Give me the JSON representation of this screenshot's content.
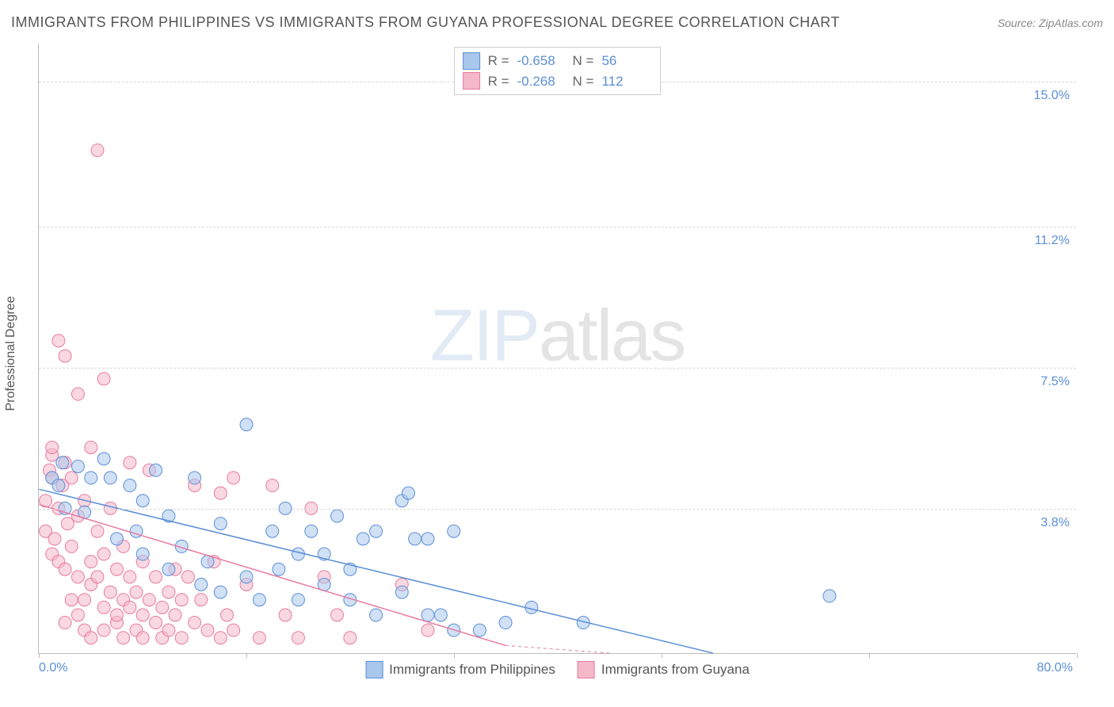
{
  "title": "IMMIGRANTS FROM PHILIPPINES VS IMMIGRANTS FROM GUYANA PROFESSIONAL DEGREE CORRELATION CHART",
  "source": "Source: ZipAtlas.com",
  "watermark": {
    "part1": "ZIP",
    "part2": "atlas"
  },
  "y_axis_title": "Professional Degree",
  "chart": {
    "type": "scatter",
    "xlim": [
      0,
      80
    ],
    "ylim": [
      0,
      16
    ],
    "x_ticks": [
      0,
      16,
      32,
      48,
      64,
      80
    ],
    "x_tick_labels": {
      "0": "0.0%",
      "80": "80.0%"
    },
    "y_gridlines": [
      3.8,
      7.5,
      11.2,
      15.0
    ],
    "y_tick_labels": [
      "3.8%",
      "7.5%",
      "11.2%",
      "15.0%"
    ],
    "grid_color": "#d8d8d8",
    "axis_color": "#bbbbbb",
    "background_color": "#ffffff",
    "marker_radius": 8,
    "marker_opacity": 0.55,
    "line_width": 1.5
  },
  "series": [
    {
      "name": "Immigrants from Philippines",
      "color_fill": "#a9c7ec",
      "color_stroke": "#5b8fd6",
      "R": "-0.658",
      "N": "56",
      "trend": {
        "x1": 0,
        "y1": 4.3,
        "x2": 52,
        "y2": 0.0
      },
      "points": [
        [
          1,
          4.6
        ],
        [
          1.5,
          4.4
        ],
        [
          1.8,
          5.0
        ],
        [
          2,
          3.8
        ],
        [
          3,
          4.9
        ],
        [
          3.5,
          3.7
        ],
        [
          4,
          4.6
        ],
        [
          5,
          5.1
        ],
        [
          5.5,
          4.6
        ],
        [
          6,
          3.0
        ],
        [
          7,
          4.4
        ],
        [
          7.5,
          3.2
        ],
        [
          8,
          4.0
        ],
        [
          8,
          2.6
        ],
        [
          9,
          4.8
        ],
        [
          10,
          2.2
        ],
        [
          10,
          3.6
        ],
        [
          11,
          2.8
        ],
        [
          12,
          4.6
        ],
        [
          12.5,
          1.8
        ],
        [
          13,
          2.4
        ],
        [
          14,
          3.4
        ],
        [
          14,
          1.6
        ],
        [
          16,
          6.0
        ],
        [
          16,
          2.0
        ],
        [
          17,
          1.4
        ],
        [
          18,
          3.2
        ],
        [
          18.5,
          2.2
        ],
        [
          19,
          3.8
        ],
        [
          20,
          2.6
        ],
        [
          20,
          1.4
        ],
        [
          21,
          3.2
        ],
        [
          22,
          1.8
        ],
        [
          22,
          2.6
        ],
        [
          23,
          3.6
        ],
        [
          24,
          1.4
        ],
        [
          24,
          2.2
        ],
        [
          25,
          3.0
        ],
        [
          26,
          1.0
        ],
        [
          26,
          3.2
        ],
        [
          28,
          4.0
        ],
        [
          28,
          1.6
        ],
        [
          29,
          3.0
        ],
        [
          30,
          1.0
        ],
        [
          30,
          3.0
        ],
        [
          31,
          1.0
        ],
        [
          32,
          3.2
        ],
        [
          32,
          0.6
        ],
        [
          34,
          0.6
        ],
        [
          36,
          0.8
        ],
        [
          38,
          1.2
        ],
        [
          42,
          0.8
        ],
        [
          28.5,
          4.2
        ],
        [
          61,
          1.5
        ]
      ]
    },
    {
      "name": "Immigrants from Guyana",
      "color_fill": "#f4b8c8",
      "color_stroke": "#e87ba0",
      "R": "-0.268",
      "N": "112",
      "trend": {
        "x1": 0,
        "y1": 3.9,
        "x2": 36,
        "y2": 0.2
      },
      "trend_dash_ext": {
        "x1": 36,
        "y1": 0.2,
        "x2": 44,
        "y2": 0.0
      },
      "points": [
        [
          0.5,
          4.0
        ],
        [
          0.5,
          3.2
        ],
        [
          0.8,
          4.8
        ],
        [
          1,
          2.6
        ],
        [
          1,
          5.2
        ],
        [
          1,
          5.4
        ],
        [
          1,
          4.6
        ],
        [
          1.2,
          3.0
        ],
        [
          1.5,
          8.2
        ],
        [
          1.5,
          2.4
        ],
        [
          1.5,
          3.8
        ],
        [
          1.8,
          4.4
        ],
        [
          2,
          7.8
        ],
        [
          2,
          2.2
        ],
        [
          2,
          5.0
        ],
        [
          2,
          0.8
        ],
        [
          2.2,
          3.4
        ],
        [
          2.5,
          1.4
        ],
        [
          2.5,
          2.8
        ],
        [
          2.5,
          4.6
        ],
        [
          3,
          6.8
        ],
        [
          3,
          1.0
        ],
        [
          3,
          2.0
        ],
        [
          3,
          3.6
        ],
        [
          3.5,
          1.4
        ],
        [
          3.5,
          4.0
        ],
        [
          3.5,
          0.6
        ],
        [
          4,
          2.4
        ],
        [
          4,
          5.4
        ],
        [
          4,
          1.8
        ],
        [
          4,
          0.4
        ],
        [
          4.5,
          13.2
        ],
        [
          4.5,
          3.2
        ],
        [
          4.5,
          2.0
        ],
        [
          5,
          7.2
        ],
        [
          5,
          1.2
        ],
        [
          5,
          2.6
        ],
        [
          5,
          0.6
        ],
        [
          5.5,
          3.8
        ],
        [
          5.5,
          1.6
        ],
        [
          6,
          2.2
        ],
        [
          6,
          0.8
        ],
        [
          6,
          1.0
        ],
        [
          6.5,
          1.4
        ],
        [
          6.5,
          2.8
        ],
        [
          6.5,
          0.4
        ],
        [
          7,
          5.0
        ],
        [
          7,
          2.0
        ],
        [
          7,
          1.2
        ],
        [
          7.5,
          1.6
        ],
        [
          7.5,
          0.6
        ],
        [
          8,
          2.4
        ],
        [
          8,
          1.0
        ],
        [
          8,
          0.4
        ],
        [
          8.5,
          4.8
        ],
        [
          8.5,
          1.4
        ],
        [
          9,
          2.0
        ],
        [
          9,
          0.8
        ],
        [
          9.5,
          1.2
        ],
        [
          9.5,
          0.4
        ],
        [
          10,
          1.6
        ],
        [
          10,
          0.6
        ],
        [
          10.5,
          2.2
        ],
        [
          10.5,
          1.0
        ],
        [
          11,
          0.4
        ],
        [
          11,
          1.4
        ],
        [
          11.5,
          2.0
        ],
        [
          12,
          4.4
        ],
        [
          12,
          0.8
        ],
        [
          12.5,
          1.4
        ],
        [
          13,
          0.6
        ],
        [
          13.5,
          2.4
        ],
        [
          14,
          0.4
        ],
        [
          14,
          4.2
        ],
        [
          14.5,
          1.0
        ],
        [
          15,
          4.6
        ],
        [
          15,
          0.6
        ],
        [
          16,
          1.8
        ],
        [
          17,
          0.4
        ],
        [
          18,
          4.4
        ],
        [
          19,
          1.0
        ],
        [
          20,
          0.4
        ],
        [
          21,
          3.8
        ],
        [
          22,
          2.0
        ],
        [
          23,
          1.0
        ],
        [
          24,
          0.4
        ],
        [
          28,
          1.8
        ],
        [
          30,
          0.6
        ]
      ]
    }
  ],
  "legend_bottom": [
    "Immigrants from Philippines",
    "Immigrants from Guyana"
  ]
}
